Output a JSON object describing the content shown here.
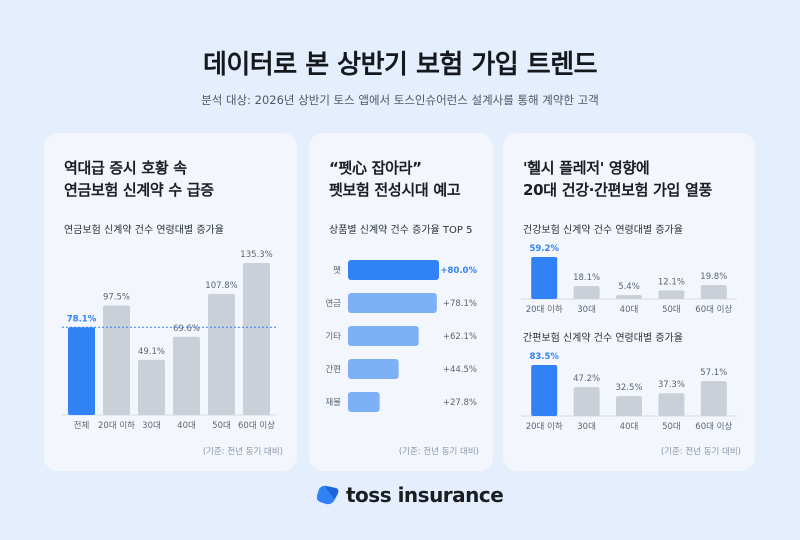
{
  "header": {
    "title": "데이터로 본 상반기 보험 가입 트렌드",
    "subtitle": "분석 대상: 2026년 상반기 토스 앱에서 토스인슈어런스 설계사를 통해 계약한 고객"
  },
  "cards": [
    {
      "heading_lines": [
        "역대급 증시 호황 속",
        "연금보험 신계약 수 급증"
      ],
      "footnote": "(기준: 전년 동기 대비)"
    },
    {
      "heading_lines": [
        "“펫心 잡아라”",
        "펫보험 전성시대 예고"
      ],
      "footnote": "(기준: 전년 동기 대비)"
    },
    {
      "heading_lines": [
        "'헬시 플레저' 영향에",
        "20대 건강·간편보험 가입 열풍"
      ],
      "footnote": "(기준: 전년 동기 대비)"
    }
  ],
  "brand": {
    "name": "toss insurance",
    "accent": "#3182f6",
    "bar_gray": "#c9d0d8",
    "bar_light_blue": "#7eb0f8"
  },
  "chart_data": [
    {
      "type": "bar",
      "title": "연금보험 신계약 건수 연령대별 증가율",
      "categories": [
        "전체",
        "20대 이하",
        "30대",
        "40대",
        "50대",
        "60대 이상"
      ],
      "values": [
        78.1,
        97.5,
        49.1,
        69.6,
        107.8,
        135.3
      ],
      "value_labels": [
        "78.1%",
        "97.5%",
        "49.1%",
        "69.6%",
        "107.8%",
        "135.3%"
      ],
      "highlight_index": 0,
      "reference_line": 78.1,
      "ylim": [
        0,
        135.3
      ]
    },
    {
      "type": "bar",
      "orientation": "horizontal",
      "title": "상품별 신계약 건수 증가율 TOP 5",
      "categories": [
        "펫",
        "연금",
        "기타",
        "간편",
        "재물"
      ],
      "values": [
        80.0,
        78.1,
        62.1,
        44.5,
        27.8
      ],
      "value_labels": [
        "+80.0%",
        "+78.1%",
        "+62.1%",
        "+44.5%",
        "+27.8%"
      ],
      "highlight_index": 0,
      "xlim": [
        0,
        80.0
      ]
    },
    {
      "type": "bar",
      "title": "건강보험 신계약 건수 연령대별 증가율",
      "categories": [
        "20대 이하",
        "30대",
        "40대",
        "50대",
        "60대 이상"
      ],
      "values": [
        59.2,
        18.1,
        5.4,
        12.1,
        19.8
      ],
      "value_labels": [
        "59.2%",
        "18.1%",
        "5.4%",
        "12.1%",
        "19.8%"
      ],
      "highlight_index": 0,
      "ylim": [
        0,
        59.2
      ]
    },
    {
      "type": "bar",
      "title": "간편보험 신계약 건수 연령대별 증가율",
      "categories": [
        "20대 이하",
        "30대",
        "40대",
        "50대",
        "60대 이상"
      ],
      "values": [
        83.5,
        47.2,
        32.5,
        37.3,
        57.1
      ],
      "value_labels": [
        "83.5%",
        "47.2%",
        "32.5%",
        "37.3%",
        "57.1%"
      ],
      "highlight_index": 0,
      "ylim": [
        0,
        83.5
      ]
    }
  ]
}
